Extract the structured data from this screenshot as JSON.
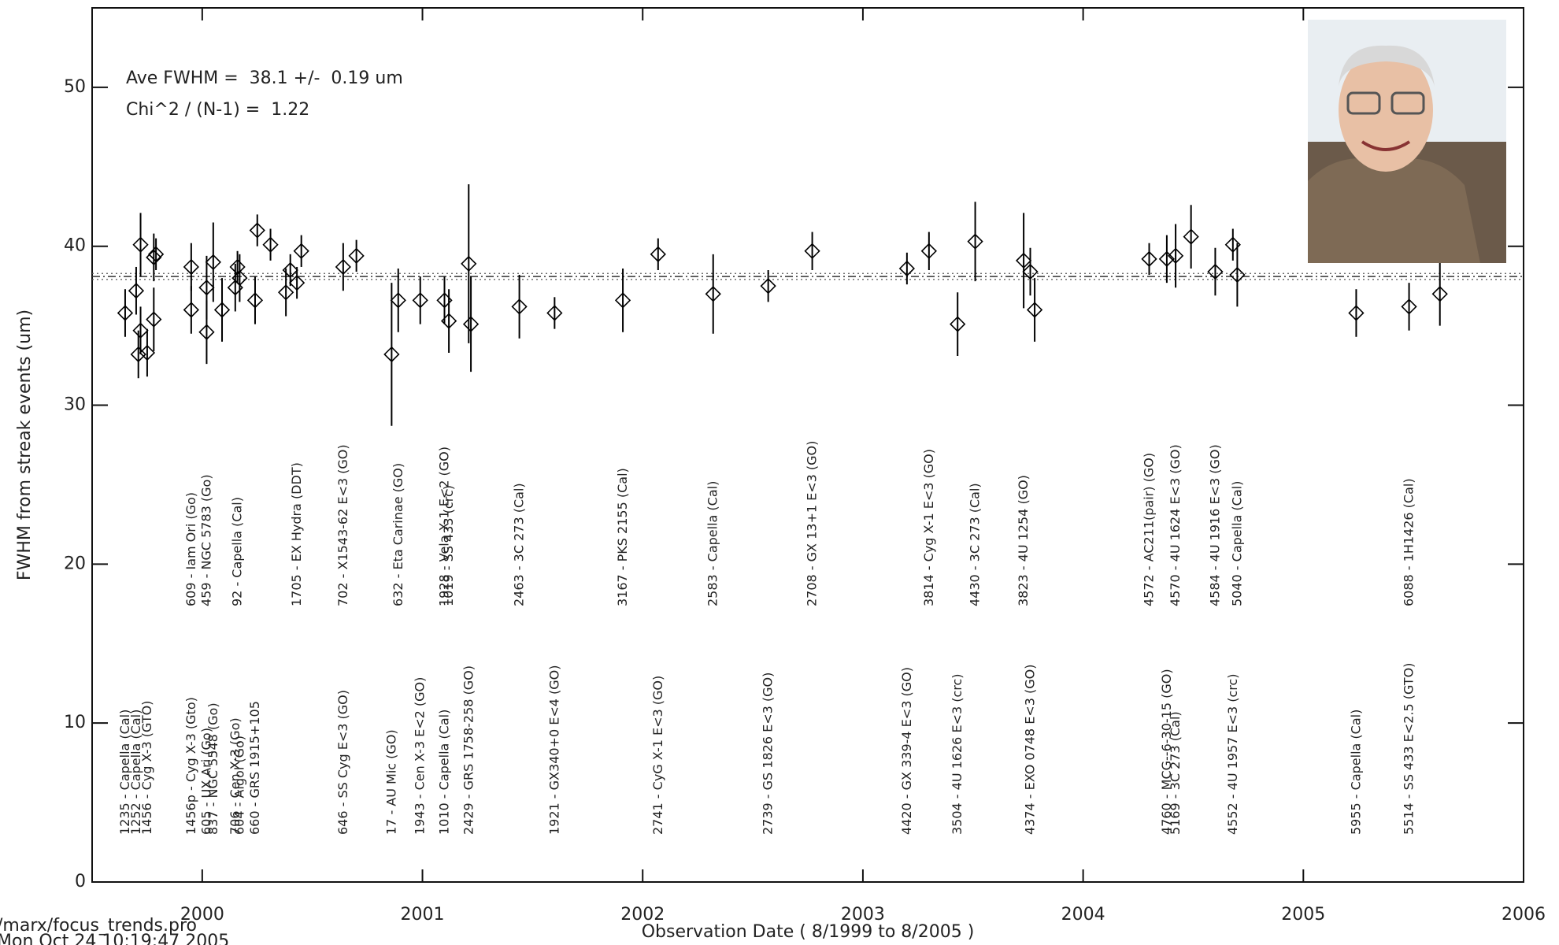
{
  "chart_data": {
    "type": "scatter",
    "xlabel": "Observation Date ( 8/1999 to 8/2005 )",
    "ylabel": "FWHM from streak events (um)",
    "annotations": [
      "Ave FWHM =  38.1 +/-  0.19 um",
      "Chi^2 / (N-1) =  1.22"
    ],
    "footer": [
      "/marx/focus_trends.pro",
      "Mon Oct 24 10:19:47 2005"
    ],
    "mean": 38.1,
    "mean_err": 0.19,
    "xlim": [
      1999.5,
      2006
    ],
    "xticks": [
      2000,
      2001,
      2002,
      2003,
      2004,
      2005,
      2006
    ],
    "ylim": [
      0,
      55
    ],
    "yticks": [
      0,
      10,
      20,
      30,
      40,
      50
    ],
    "color": "#000000",
    "x": [
      1999.65,
      1999.7,
      1999.71,
      1999.72,
      1999.72,
      1999.75,
      1999.78,
      1999.78,
      1999.79,
      1999.95,
      1999.95,
      2000.02,
      2000.02,
      2000.05,
      2000.09,
      2000.15,
      2000.16,
      2000.17,
      2000.24,
      2000.25,
      2000.31,
      2000.38,
      2000.4,
      2000.43,
      2000.45,
      2000.64,
      2000.7,
      2000.86,
      2000.89,
      2000.99,
      2001.1,
      2001.12,
      2001.21,
      2001.22,
      2001.44,
      2001.6,
      2001.91,
      2002.07,
      2002.32,
      2002.57,
      2002.77,
      2003.2,
      2003.3,
      2003.43,
      2003.51,
      2003.73,
      2003.76,
      2003.78,
      2004.3,
      2004.38,
      2004.42,
      2004.49,
      2004.6,
      2004.68,
      2004.7,
      2005.24,
      2005.48,
      2005.62
    ],
    "values": [
      35.8,
      37.2,
      33.2,
      34.7,
      40.1,
      33.3,
      35.4,
      39.3,
      39.5,
      36.0,
      38.7,
      34.6,
      37.4,
      39.0,
      36.0,
      37.4,
      38.7,
      38.0,
      36.6,
      41.0,
      40.1,
      37.1,
      38.5,
      37.7,
      39.7,
      38.7,
      39.4,
      33.2,
      36.6,
      36.6,
      36.6,
      35.3,
      38.9,
      35.1,
      36.2,
      35.8,
      36.6,
      39.5,
      37.0,
      37.5,
      39.7,
      38.6,
      39.7,
      35.1,
      40.3,
      39.1,
      38.4,
      36.0,
      39.2,
      39.2,
      39.4,
      40.6,
      38.4,
      40.1,
      38.2,
      35.8,
      36.2,
      37.0
    ],
    "errors": [
      1.5,
      1.5,
      1.5,
      1.5,
      2,
      1.5,
      2,
      1.5,
      1,
      1.5,
      1.5,
      2,
      2,
      2.5,
      2,
      1.5,
      1,
      1.5,
      1.5,
      1,
      1,
      1.5,
      1,
      1,
      1,
      1.5,
      1,
      4.5,
      2,
      1.5,
      1.5,
      2,
      5,
      3,
      2,
      1,
      2,
      1,
      2.5,
      1,
      1.2,
      1,
      1.2,
      2,
      2.5,
      3,
      1.5,
      2,
      1,
      1.5,
      2,
      2,
      1.5,
      1,
      2,
      1.5,
      1.5,
      2
    ],
    "labels_lower": [
      "1235 - Capella (Cal)",
      "1252 - Capella (Cal)",
      null,
      null,
      null,
      "1456 - Cyg X-3 (GTO)",
      null,
      null,
      null,
      null,
      "1456p - Cyg X-3 (Gto)",
      "605 - UX Ari (Go)",
      null,
      "837 - NGC 5548 (Go)",
      null,
      "706 - Cen X-3 (Go)",
      null,
      "604 - Algol (Go)",
      "660 - GRS 1915+105",
      null,
      null,
      null,
      null,
      null,
      null,
      "646 - SS Cyg E<3 (GO)",
      null,
      "17 - AU Mic (GO)",
      null,
      "1943 - Cen X-3 E<2 (GO)",
      "1010 - Capella (Cal)",
      null,
      "2429 - GRS 1758-258 (GO)",
      null,
      null,
      "1921 - GX340+0 E<4 (GO)",
      null,
      "2741 - CyG X-1 E<3 (GO)",
      null,
      "2739 - GS 1826 E<3 (GO)",
      null,
      "4420 - GX 339-4 E<3 (GO)",
      null,
      "3504 - 4U 1626 E<3 (crc)",
      null,
      null,
      "4374 - EXO 0748 E<3 (GO)",
      null,
      null,
      "4760 - MCG--6-30-15 (GO)",
      "5169 - 3C 273 (Cal)",
      null,
      null,
      "4552 - 4U 1957 E<3 (crc)",
      null,
      "5955 - Capella (Cal)",
      "5514 - SS 433 E<2.5 (GTO)",
      null
    ],
    "labels_upper": [
      null,
      null,
      null,
      null,
      null,
      null,
      null,
      null,
      null,
      null,
      "609 - Iam Ori (Go)",
      null,
      "459 - NGC 5783 (Go)",
      null,
      null,
      null,
      "92 - Capella (Cal)",
      null,
      null,
      null,
      null,
      null,
      null,
      "1705 - EX Hydra (DDT)",
      null,
      "702 - X1543-62 E<3 (GO)",
      null,
      null,
      "632 - Eta Carinae (GO)",
      null,
      "1928 - Vela X-1 E<2 (GO)",
      "1019 - SS 433 (crc)",
      null,
      null,
      "2463 - 3C 273 (Cal)",
      null,
      "3167 - PKS 2155 (Cal)",
      null,
      "2583 - Capella (Cal)",
      null,
      "2708 - GX 13+1 E<3 (GO)",
      null,
      "3814 - Cyg X-1 E<3 (GO)",
      null,
      "4430 - 3C 273 (Cal)",
      "3823 - 4U 1254 (GO)",
      null,
      null,
      "4572 - AC211(pair) (GO)",
      null,
      "4570 - 4U 1624 E<3 (GO)",
      null,
      "4584 - 4U 1916 E<3 (GO)",
      null,
      "5040 - Capella (Cal)",
      null,
      "6088 - 1H1426 (Cal)",
      null
    ]
  }
}
